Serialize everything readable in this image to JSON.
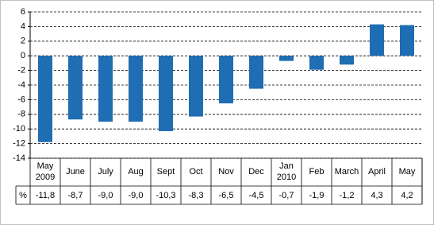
{
  "chart_data": {
    "type": "bar",
    "categories": [
      "May 2009",
      "June",
      "July",
      "Aug",
      "Sept",
      "Oct",
      "Nov",
      "Dec",
      "Jan 2010",
      "Feb",
      "March",
      "April",
      "May"
    ],
    "values": [
      -11.8,
      -8.7,
      -9.0,
      -9.0,
      -10.3,
      -8.3,
      -6.5,
      -4.5,
      -0.7,
      -1.9,
      -1.2,
      4.3,
      4.2
    ],
    "value_labels": [
      "-11,8",
      "-8,7",
      "-9,0",
      "-9,0",
      "-10,3",
      "-8,3",
      "-6,5",
      "-4,5",
      "-0,7",
      "-1,9",
      "-1,2",
      "4,3",
      "4,2"
    ],
    "table_row_label": "%",
    "color": "#1f6db3",
    "ylim": [
      -14,
      6
    ],
    "yticks": [
      -14,
      -12,
      -10,
      -8,
      -6,
      -4,
      -2,
      0,
      2,
      4,
      6
    ],
    "grid": true
  }
}
